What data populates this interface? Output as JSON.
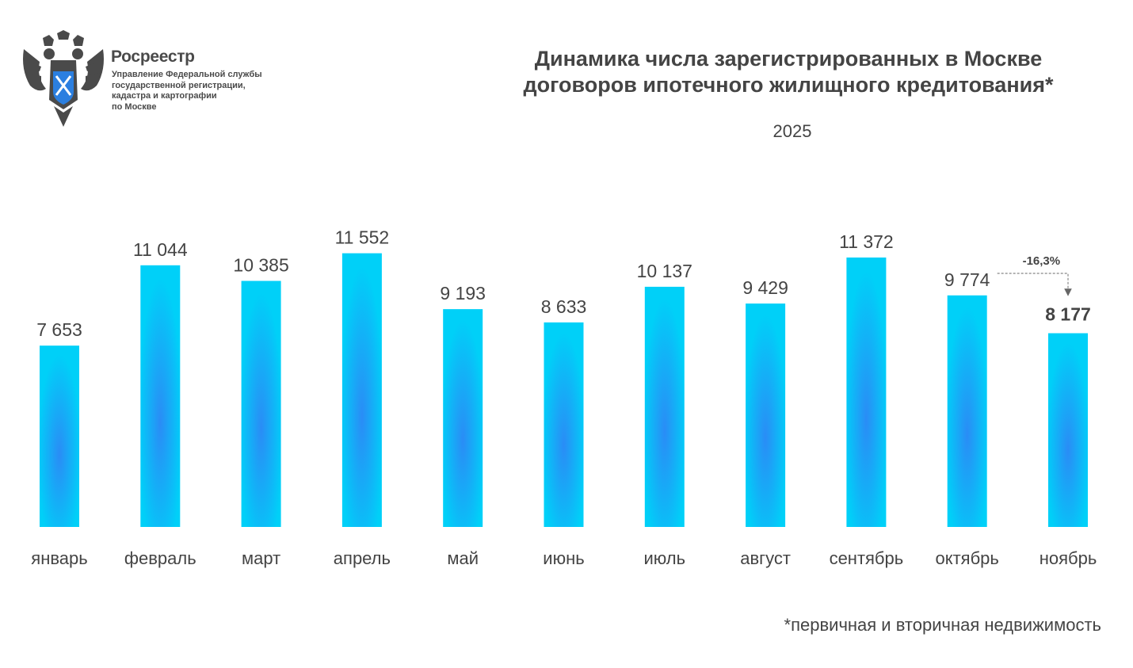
{
  "logo": {
    "name": "Росреестр",
    "subtitle_lines": [
      "Управление Федеральной службы",
      "государственной регистрации,",
      "кадастра и картографии",
      "по Москве"
    ]
  },
  "colors": {
    "bar_edge": "#00d0f8",
    "bar_center": "#2a8cf6",
    "text": "#444444"
  },
  "chart_data": {
    "type": "bar",
    "title": "Динамика числа зарегистрированных в Москве договоров ипотечного жилищного кредитования*",
    "title_lines": [
      "Динамика числа зарегистрированных в Москве",
      "договоров ипотечного жилищного кредитования*"
    ],
    "subtitle": "2025",
    "categories": [
      "январь",
      "февраль",
      "март",
      "апрель",
      "май",
      "июнь",
      "июль",
      "август",
      "сентябрь",
      "октябрь",
      "ноябрь"
    ],
    "values": [
      7653,
      11044,
      10385,
      11552,
      9193,
      8633,
      10137,
      9429,
      11372,
      9774,
      8177
    ],
    "value_labels": [
      "7 653",
      "11 044",
      "10 385",
      "11 552",
      "9 193",
      "8 633",
      "10 137",
      "9 429",
      "11 372",
      "9 774",
      "8 177"
    ],
    "highlight_index": 10,
    "annotation": {
      "text": "-16,3%",
      "from_index": 9,
      "to_index": 10
    },
    "xlabel": "",
    "ylabel": "",
    "ylim": [
      0,
      12000
    ],
    "grid": false,
    "legend": "none",
    "footnote": "*первичная и вторичная недвижимость"
  }
}
